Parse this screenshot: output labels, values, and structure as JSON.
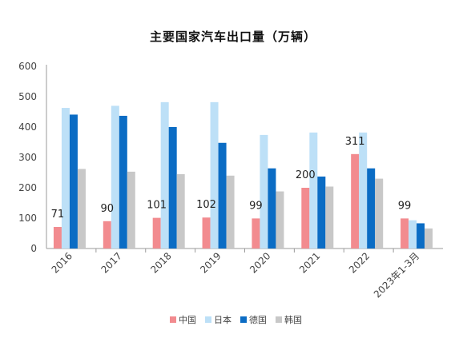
{
  "chart_data": {
    "type": "bar",
    "title": "主要国家汽车出口量（万辆）",
    "categories": [
      "2016",
      "2017",
      "2018",
      "2019",
      "2020",
      "2021",
      "2022",
      "2023年1-3月"
    ],
    "series": [
      {
        "name": "中国",
        "color": "#F28B8F",
        "values": [
          71,
          90,
          101,
          102,
          99,
          200,
          311,
          99
        ]
      },
      {
        "name": "日本",
        "color": "#BDE0F7",
        "values": [
          463,
          470,
          482,
          482,
          374,
          382,
          382,
          93
        ]
      },
      {
        "name": "德国",
        "color": "#0B6CC4",
        "values": [
          441,
          437,
          400,
          348,
          264,
          237,
          264,
          83
        ]
      },
      {
        "name": "韩国",
        "color": "#C8C8C8",
        "values": [
          262,
          253,
          245,
          240,
          188,
          204,
          230,
          66
        ]
      }
    ],
    "data_labels": {
      "series": "中国",
      "values": [
        "71",
        "90",
        "101",
        "102",
        "99",
        "200",
        "311",
        "99"
      ],
      "colors": [
        "#222222",
        "#222222",
        "#222222",
        "#222222",
        "#222222",
        "#222222",
        "#222222",
        "#E02020"
      ]
    },
    "yticks": [
      "0",
      "100",
      "200",
      "300",
      "400",
      "500",
      "600"
    ],
    "ylim": [
      0,
      600
    ],
    "xlabel": "",
    "ylabel": "",
    "grid": false,
    "legend": "bottom-center"
  }
}
